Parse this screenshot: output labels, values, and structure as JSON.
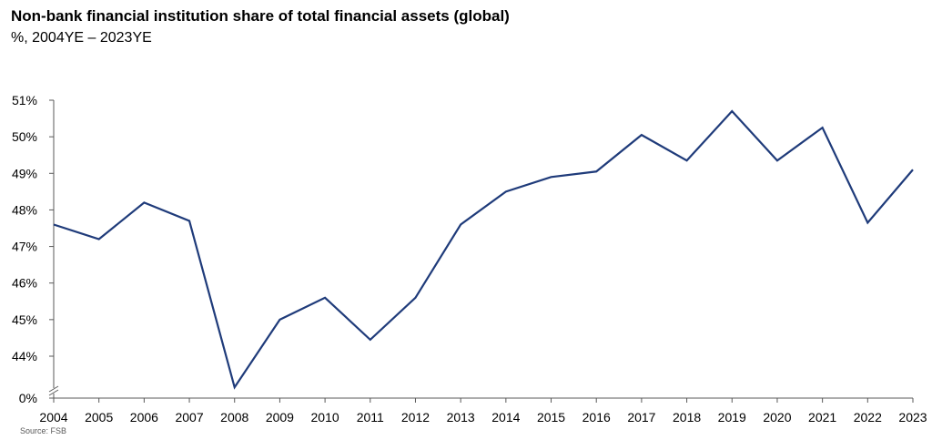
{
  "chart_data": {
    "type": "line",
    "title": "Non-bank financial institution share of total financial assets (global)",
    "subtitle": "%, 2004YE – 2023YE",
    "source": "Source: FSB",
    "x": [
      "2004",
      "2005",
      "2006",
      "2007",
      "2008",
      "2009",
      "2010",
      "2011",
      "2012",
      "2013",
      "2014",
      "2015",
      "2016",
      "2017",
      "2018",
      "2019",
      "2020",
      "2021",
      "2022",
      "2023"
    ],
    "series": [
      {
        "values": [
          47.6,
          47.2,
          48.2,
          47.7,
          43.15,
          45.0,
          45.6,
          44.45,
          45.6,
          47.6,
          48.5,
          48.9,
          49.05,
          50.05,
          49.35,
          50.7,
          49.35,
          50.25,
          47.65,
          49.1
        ]
      }
    ],
    "y_ticks": [
      {
        "value": 0,
        "label": "0%"
      },
      {
        "value": 44,
        "label": "44%"
      },
      {
        "value": 45,
        "label": "45%"
      },
      {
        "value": 46,
        "label": "46%"
      },
      {
        "value": 47,
        "label": "47%"
      },
      {
        "value": 48,
        "label": "48%"
      },
      {
        "value": 49,
        "label": "49%"
      },
      {
        "value": 50,
        "label": "50%"
      },
      {
        "value": 51,
        "label": "51%"
      }
    ],
    "ylim": [
      43.1,
      51
    ],
    "axis_break": true,
    "grid": false,
    "line_color": "#1f3b7a"
  }
}
